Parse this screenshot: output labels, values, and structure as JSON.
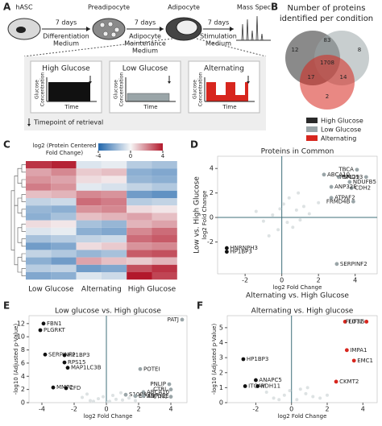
{
  "panel_labels": [
    "A",
    "B",
    "C",
    "D",
    "E",
    "F"
  ],
  "workflow": {
    "stages": [
      "hASC",
      "Preadipocyte",
      "Adipocyte",
      "Mass Spec"
    ],
    "steps": [
      {
        "duration": "7 days",
        "medium": [
          "Differentiation",
          "Medium"
        ]
      },
      {
        "duration": "7 days",
        "medium": [
          "Adipocyte",
          "Maintenance",
          "Medium"
        ]
      },
      {
        "duration": "7 days",
        "medium": [
          "Stimulation",
          "Medium"
        ]
      }
    ],
    "conditions": [
      "High Glucose",
      "Low Glucose",
      "Alternating"
    ],
    "y_label": [
      "Glucose",
      "Concentration"
    ],
    "x_label": "Time",
    "footnote": "Timepoint of retrieval"
  },
  "venn": {
    "title": [
      "Number of proteins",
      "identified per condition"
    ],
    "regions": [
      "12",
      "83",
      "8",
      "1708",
      "17",
      "14",
      "2"
    ],
    "legend": [
      {
        "name": "High Glucose",
        "color": "#2a2a2a"
      },
      {
        "name": "Low Glucose",
        "color": "#9aa5a8"
      },
      {
        "name": "Alternating",
        "color": "#d7261e"
      }
    ]
  },
  "heatmap": {
    "colorbar_title": [
      "log2 (Protein Centered",
      "Fold Change)"
    ],
    "colorbar_ticks": [
      -4,
      0,
      4
    ],
    "columns": [
      "Low Glucose",
      "Alternating",
      "High Glucose"
    ],
    "values": [
      [
        3.5,
        3.8,
        -0.5,
        -0.3,
        -1.2,
        -1.5
      ],
      [
        1.5,
        2.0,
        0.8,
        1.0,
        -2.0,
        -2.2
      ],
      [
        1.8,
        1.5,
        0.5,
        0.3,
        -1.8,
        -2.0
      ],
      [
        2.2,
        1.8,
        -0.4,
        -0.6,
        -1.0,
        -1.3
      ],
      [
        1.0,
        1.2,
        2.0,
        1.8,
        -2.5,
        -2.8
      ],
      [
        -1.0,
        -0.8,
        2.5,
        2.2,
        -1.2,
        -1.0
      ],
      [
        -1.8,
        -2.0,
        1.8,
        2.0,
        0.5,
        0.3
      ],
      [
        -2.0,
        -1.5,
        1.0,
        1.2,
        1.5,
        1.0
      ],
      [
        0.5,
        0.3,
        -1.5,
        -1.8,
        1.2,
        1.5
      ],
      [
        -0.5,
        -0.3,
        -2.0,
        -2.2,
        2.0,
        2.5
      ],
      [
        -1.5,
        -1.2,
        -1.0,
        -0.8,
        2.5,
        2.8
      ],
      [
        -2.5,
        -2.2,
        0.5,
        0.8,
        1.8,
        2.0
      ],
      [
        -1.0,
        -1.3,
        -1.8,
        -1.5,
        2.8,
        3.0
      ],
      [
        -2.0,
        -2.5,
        1.5,
        1.0,
        0.8,
        1.2
      ],
      [
        -1.2,
        -1.0,
        -2.5,
        -2.2,
        3.0,
        3.5
      ],
      [
        -2.2,
        -2.0,
        -0.5,
        -0.8,
        4.0,
        3.2
      ]
    ]
  },
  "scatter_d": {
    "title": "Proteins in Common",
    "x_label": "Alternating vs. High Glucose",
    "x_unit": "log2 Fold Change",
    "y_label": "Low vs. High Glucose",
    "y_unit": "log2 Fold Change",
    "xlim": [
      -3.5,
      5.2
    ],
    "ylim": [
      -4.6,
      5
    ],
    "xticks": [
      -2,
      0,
      2,
      4
    ],
    "yticks": [
      -2,
      0,
      2,
      4
    ],
    "zero_lines": [
      "x",
      "y"
    ],
    "other_color": "#dde2e3",
    "points": [
      {
        "label": "TBCA",
        "x": 4.1,
        "y": 3.9,
        "color": "#9aa5a8"
      },
      {
        "label": "PSMD13",
        "x": 4.6,
        "y": 3.3,
        "color": "#9aa5a8"
      },
      {
        "label": "RPL29",
        "x": 3.1,
        "y": 3.3,
        "color": "#9aa5a8"
      },
      {
        "label": "NDUFB5",
        "x": 3.7,
        "y": 2.9,
        "color": "#9aa5a8"
      },
      {
        "label": "ABCA10",
        "x": 2.3,
        "y": 3.5,
        "color": "#9aa5a8"
      },
      {
        "label": "CDH2",
        "x": 3.8,
        "y": 2.4,
        "color": "#9aa5a8"
      },
      {
        "label": "ANP32E",
        "x": 2.7,
        "y": 2.5,
        "color": "#9aa5a8"
      },
      {
        "label": "ATPAF2",
        "x": 2.7,
        "y": 1.6,
        "color": "#9aa5a8"
      },
      {
        "label": "FRMD4B",
        "x": 3.9,
        "y": 1.3,
        "color": "#9aa5a8"
      },
      {
        "label": "HNRNPH3",
        "x": -3.0,
        "y": -2.5,
        "color": "#111111"
      },
      {
        "label": "HP1BP3",
        "x": -3.0,
        "y": -2.8,
        "color": "#111111"
      },
      {
        "label": "SERPINF2",
        "x": 3.0,
        "y": -3.8,
        "color": "#9aa5a8"
      }
    ],
    "other_points": {
      "x": [
        -0.5,
        0.3,
        0.8,
        -1.0,
        1.2,
        0.1,
        -0.2,
        0.6,
        1.5,
        -1.4,
        0.4,
        -0.7,
        2.0,
        1.0,
        -0.1,
        0.9
      ],
      "y": [
        0.2,
        -0.4,
        0.6,
        -0.3,
        0.9,
        1.1,
        -1.0,
        -0.8,
        0.3,
        0.5,
        1.6,
        -1.5,
        1.2,
        -0.2,
        0.7,
        2.0
      ]
    }
  },
  "scatter_e": {
    "title": "Low glucose vs. High glucose",
    "x_unit": "log2 Fold Change",
    "y_unit": "-log10 (Adjusted p-Value)",
    "xlim": [
      -4.8,
      5
    ],
    "ylim": [
      0,
      13.2
    ],
    "xticks": [
      -4,
      -2,
      0,
      2,
      4
    ],
    "yticks": [
      0,
      2,
      4,
      6,
      8,
      10,
      12
    ],
    "zero_lines": [
      "x"
    ],
    "other_color": "#dde2e3",
    "points": [
      {
        "label": "FBN1",
        "x": -3.9,
        "y": 12.0,
        "color": "#111111"
      },
      {
        "label": "PLGRKT",
        "x": -4.1,
        "y": 11.0,
        "color": "#111111"
      },
      {
        "label": "SERPINF2",
        "x": -3.8,
        "y": 7.3,
        "color": "#111111"
      },
      {
        "label": "HP1BP3",
        "x": -2.6,
        "y": 7.2,
        "color": "#111111"
      },
      {
        "label": "RPS15",
        "x": -2.6,
        "y": 6.1,
        "color": "#111111"
      },
      {
        "label": "MAP1LC3B",
        "x": -2.4,
        "y": 5.3,
        "color": "#111111"
      },
      {
        "label": "MMP2",
        "x": -3.3,
        "y": 2.3,
        "color": "#111111"
      },
      {
        "label": "CFD",
        "x": -2.5,
        "y": 2.2,
        "color": "#111111"
      },
      {
        "label": "PATJ",
        "x": 4.7,
        "y": 12.6,
        "color": "#9aa5a8"
      },
      {
        "label": "POTEI",
        "x": 2.1,
        "y": 5.1,
        "color": "#9aa5a8"
      },
      {
        "label": "PNLIP",
        "x": 3.9,
        "y": 2.8,
        "color": "#9aa5a8"
      },
      {
        "label": "CTRL",
        "x": 4.0,
        "y": 2.0,
        "color": "#9aa5a8"
      },
      {
        "label": "CTRC",
        "x": 4.0,
        "y": 0.9,
        "color": "#9aa5a8"
      },
      {
        "label": "ABCA10",
        "x": 2.3,
        "y": 1.6,
        "color": "#9aa5a8"
      },
      {
        "label": "S100A7",
        "x": 1.2,
        "y": 1.2,
        "color": "#9aa5a8"
      },
      {
        "label": "EIF3D",
        "x": 1.8,
        "y": 1.0,
        "color": "#9aa5a8"
      },
      {
        "label": "ANP32E",
        "x": 2.3,
        "y": 1.0,
        "color": "#9aa5a8"
      }
    ],
    "other_points": {
      "x": [
        -1.0,
        -0.5,
        0.2,
        0.6,
        1.0,
        -1.5,
        0.4,
        -0.2,
        1.4,
        -0.8,
        0.9,
        1.8,
        -1.2,
        0.1
      ],
      "y": [
        0.3,
        0.6,
        0.2,
        0.5,
        0.4,
        0.8,
        1.1,
        0.9,
        0.7,
        0.2,
        1.5,
        0.3,
        1.3,
        0.1
      ]
    }
  },
  "scatter_f": {
    "title": "Alternating vs. High glucose",
    "x_unit": "log2 Fold Change",
    "y_unit": "-log10 (Adjusted p-Value)",
    "xlim": [
      -3.6,
      4.8
    ],
    "ylim": [
      0,
      5.8
    ],
    "xticks": [
      -2,
      0,
      2,
      4
    ],
    "yticks": [
      0,
      1,
      2,
      3,
      4,
      5
    ],
    "zero_lines": [
      "x"
    ],
    "other_color": "#dde2e3",
    "points": [
      {
        "label": "HP1BP3",
        "x": -2.7,
        "y": 2.9,
        "color": "#111111"
      },
      {
        "label": "ANAPC5",
        "x": -2.0,
        "y": 1.5,
        "color": "#111111"
      },
      {
        "label": "ITGAV",
        "x": -2.6,
        "y": 1.1,
        "color": "#111111"
      },
      {
        "label": "RDH11",
        "x": -1.9,
        "y": 1.1,
        "color": "#111111"
      },
      {
        "label": "EIF3G",
        "x": 3.0,
        "y": 5.4,
        "color": "#d7261e"
      },
      {
        "label": "FLOT2",
        "x": 4.2,
        "y": 5.4,
        "color": "#d7261e"
      },
      {
        "label": "IMPA1",
        "x": 3.1,
        "y": 3.5,
        "color": "#d7261e"
      },
      {
        "label": "EMC1",
        "x": 3.5,
        "y": 2.8,
        "color": "#d7261e"
      },
      {
        "label": "CKMT2",
        "x": 2.5,
        "y": 1.4,
        "color": "#d7261e"
      }
    ],
    "other_points": {
      "x": [
        -1.0,
        -0.4,
        0.3,
        0.8,
        1.2,
        -1.4,
        0.5,
        -0.1,
        1.6,
        2.0,
        0.9,
        -0.7
      ],
      "y": [
        0.3,
        0.5,
        0.2,
        0.6,
        0.4,
        0.7,
        0.9,
        0.8,
        0.3,
        0.5,
        1.0,
        0.2
      ]
    }
  }
}
